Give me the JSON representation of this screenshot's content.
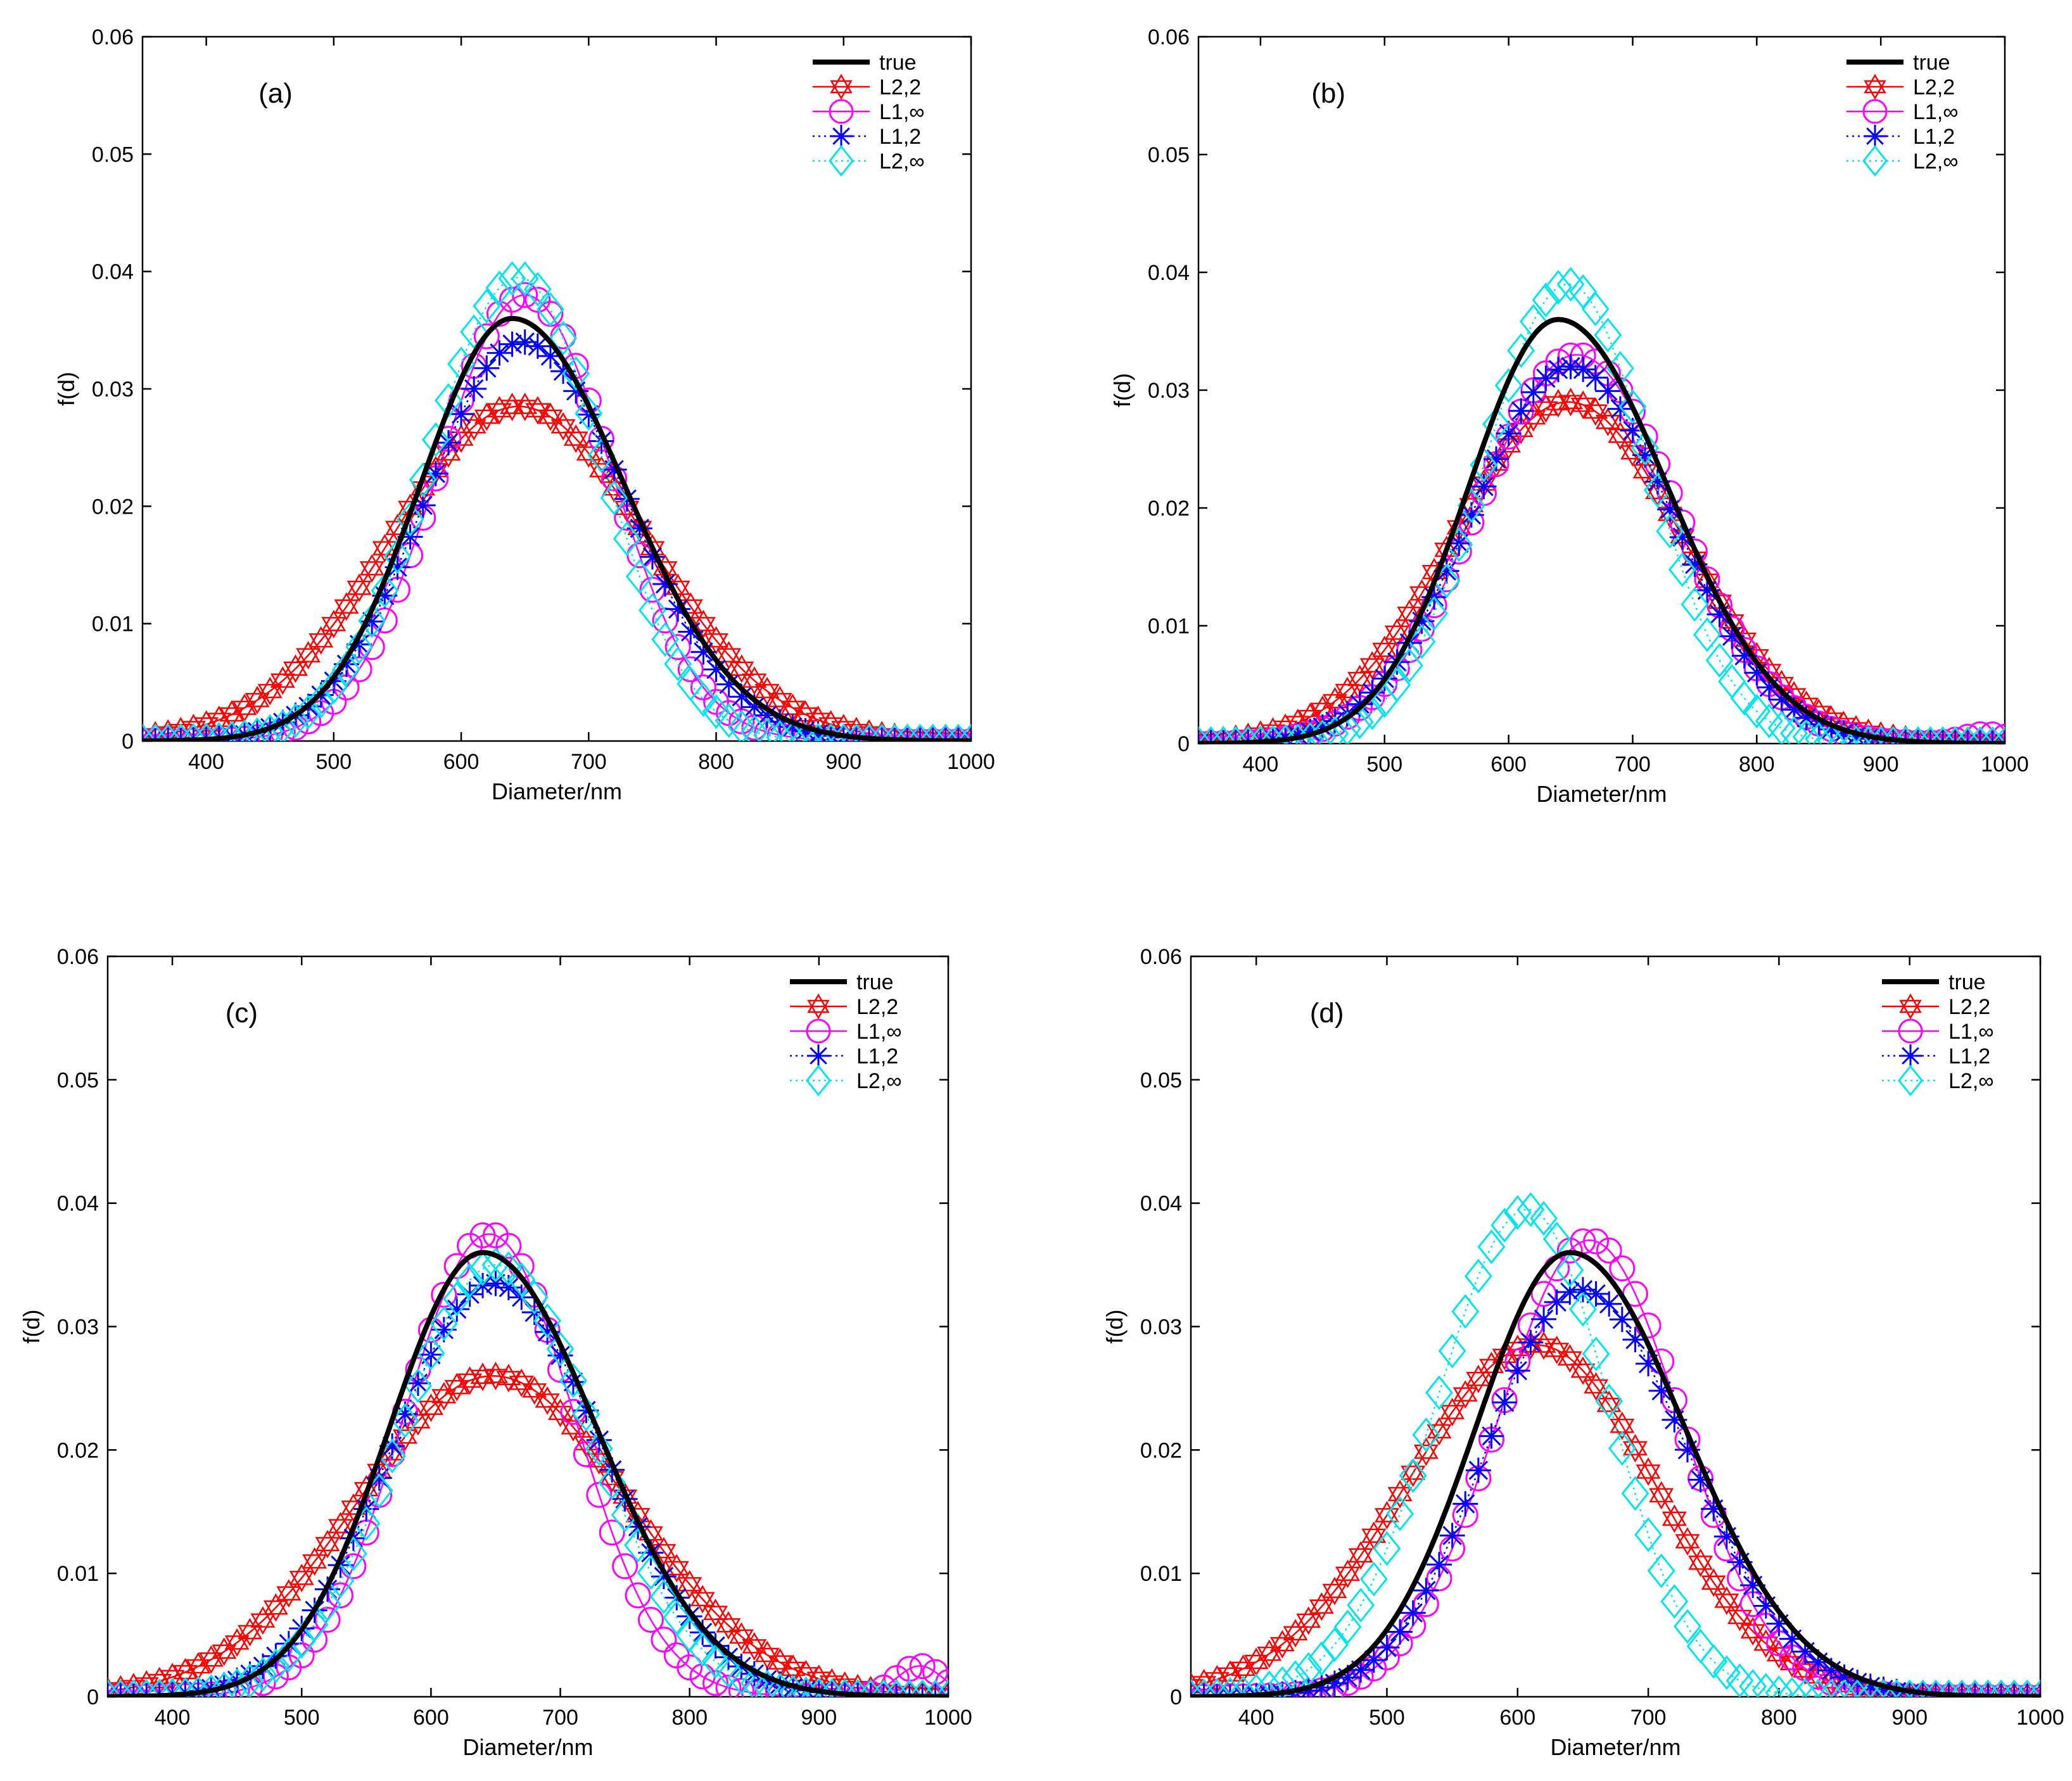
{
  "chart_data": [
    {
      "type": "line",
      "panel_label": "(a)",
      "xlabel": "Diameter/nm",
      "ylabel": "f(d)",
      "xlim": [
        350,
        1000
      ],
      "ylim": [
        0,
        0.06
      ],
      "xticks": [
        "400",
        "500",
        "600",
        "700",
        "800",
        "900",
        "1000"
      ],
      "yticks": [
        "0",
        "0.01",
        "0.02",
        "0.03",
        "0.04",
        "0.05",
        "0.06"
      ],
      "legend_position": "top-right",
      "grid": false,
      "series": [
        {
          "name": "true",
          "color": "#000000",
          "marker": "none",
          "line": "solid",
          "peak_x": 640,
          "peak_y": 0.036,
          "sigma_left": 72,
          "sigma_right": 88
        },
        {
          "name": "L2,2",
          "color": "#ff0000",
          "marker": "hexagram",
          "line": "solid",
          "peak_x": 645,
          "peak_y": 0.0285,
          "sigma_left": 100,
          "sigma_right": 100
        },
        {
          "name": "L1,∞",
          "color": "#ff00ff",
          "marker": "circle",
          "line": "solid",
          "peak_x": 650,
          "peak_y": 0.038,
          "sigma_left": 68,
          "sigma_right": 68
        },
        {
          "name": "L1,2",
          "color": "#0000ff",
          "marker": "asterisk",
          "line": "dotted",
          "peak_x": 648,
          "peak_y": 0.034,
          "sigma_left": 76,
          "sigma_right": 82
        },
        {
          "name": "L2,∞",
          "color": "#00e5ee",
          "marker": "diamond",
          "line": "dotted",
          "peak_x": 645,
          "peak_y": 0.0395,
          "sigma_left": 70,
          "sigma_right": 66
        }
      ]
    },
    {
      "type": "line",
      "panel_label": "(b)",
      "xlabel": "Diameter/nm",
      "ylabel": "f(d)",
      "xlim": [
        350,
        1000
      ],
      "ylim": [
        0,
        0.06
      ],
      "xticks": [
        "400",
        "500",
        "600",
        "700",
        "800",
        "900",
        "1000"
      ],
      "yticks": [
        "0",
        "0.01",
        "0.02",
        "0.03",
        "0.04",
        "0.05",
        "0.06"
      ],
      "legend_position": "top-right",
      "grid": false,
      "series": [
        {
          "name": "true",
          "color": "#000000",
          "marker": "none",
          "line": "solid",
          "peak_x": 640,
          "peak_y": 0.036,
          "sigma_left": 72,
          "sigma_right": 88
        },
        {
          "name": "L2,2",
          "color": "#ff0000",
          "marker": "hexagram",
          "line": "solid",
          "peak_x": 648,
          "peak_y": 0.029,
          "sigma_left": 92,
          "sigma_right": 92
        },
        {
          "name": "L1,∞",
          "color": "#ff00ff",
          "marker": "circle",
          "line": "solid",
          "peak_x": 655,
          "peak_y": 0.033,
          "sigma_left": 80,
          "sigma_right": 80,
          "tail_x": 985,
          "tail_y": 0.0008
        },
        {
          "name": "L1,2",
          "color": "#0000ff",
          "marker": "asterisk",
          "line": "dotted",
          "peak_x": 650,
          "peak_y": 0.032,
          "sigma_left": 80,
          "sigma_right": 82
        },
        {
          "name": "L2,∞",
          "color": "#00e5ee",
          "marker": "diamond",
          "line": "dotted",
          "peak_x": 648,
          "peak_y": 0.039,
          "sigma_left": 68,
          "sigma_right": 66
        }
      ]
    },
    {
      "type": "line",
      "panel_label": "(c)",
      "xlabel": "Diameter/nm",
      "ylabel": "f(d)",
      "xlim": [
        350,
        1000
      ],
      "ylim": [
        0,
        0.06
      ],
      "xticks": [
        "400",
        "500",
        "600",
        "700",
        "800",
        "900",
        "1000"
      ],
      "yticks": [
        "0",
        "0.01",
        "0.02",
        "0.03",
        "0.04",
        "0.05",
        "0.06"
      ],
      "legend_position": "top-right",
      "grid": false,
      "series": [
        {
          "name": "true",
          "color": "#000000",
          "marker": "none",
          "line": "solid",
          "peak_x": 640,
          "peak_y": 0.036,
          "sigma_left": 72,
          "sigma_right": 88
        },
        {
          "name": "L2,2",
          "color": "#ff0000",
          "marker": "hexagram",
          "line": "solid",
          "peak_x": 648,
          "peak_y": 0.026,
          "sigma_left": 105,
          "sigma_right": 105
        },
        {
          "name": "L1,∞",
          "color": "#ff00ff",
          "marker": "circle",
          "line": "solid",
          "peak_x": 645,
          "peak_y": 0.0375,
          "sigma_left": 66,
          "sigma_right": 66,
          "tail_x": 978,
          "tail_y": 0.0025
        },
        {
          "name": "L1,2",
          "color": "#0000ff",
          "marker": "asterisk",
          "line": "dotted",
          "peak_x": 648,
          "peak_y": 0.0335,
          "sigma_left": 78,
          "sigma_right": 84
        },
        {
          "name": "L2,∞",
          "color": "#00e5ee",
          "marker": "diamond",
          "line": "dotted",
          "peak_x": 650,
          "peak_y": 0.035,
          "sigma_left": 74,
          "sigma_right": 76
        }
      ]
    },
    {
      "type": "line",
      "panel_label": "(d)",
      "xlabel": "Diameter/nm",
      "ylabel": "f(d)",
      "xlim": [
        350,
        1000
      ],
      "ylim": [
        0,
        0.06
      ],
      "xticks": [
        "400",
        "500",
        "600",
        "700",
        "800",
        "900",
        "1000"
      ],
      "yticks": [
        "0",
        "0.01",
        "0.02",
        "0.03",
        "0.04",
        "0.05",
        "0.06"
      ],
      "legend_position": "top-right",
      "grid": false,
      "series": [
        {
          "name": "true",
          "color": "#000000",
          "marker": "none",
          "line": "solid",
          "peak_x": 640,
          "peak_y": 0.036,
          "sigma_left": 72,
          "sigma_right": 88
        },
        {
          "name": "L2,2",
          "color": "#ff0000",
          "marker": "hexagram",
          "line": "solid",
          "peak_x": 615,
          "peak_y": 0.0285,
          "sigma_left": 100,
          "sigma_right": 90
        },
        {
          "name": "L1,∞",
          "color": "#ff00ff",
          "marker": "circle",
          "line": "solid",
          "peak_x": 655,
          "peak_y": 0.037,
          "sigma_left": 70,
          "sigma_right": 70
        },
        {
          "name": "L1,2",
          "color": "#0000ff",
          "marker": "asterisk",
          "line": "dotted",
          "peak_x": 648,
          "peak_y": 0.033,
          "sigma_left": 72,
          "sigma_right": 82
        },
        {
          "name": "L2,∞",
          "color": "#00e5ee",
          "marker": "diamond",
          "line": "dotted",
          "peak_x": 608,
          "peak_y": 0.0395,
          "sigma_left": 70,
          "sigma_right": 62
        }
      ]
    }
  ]
}
